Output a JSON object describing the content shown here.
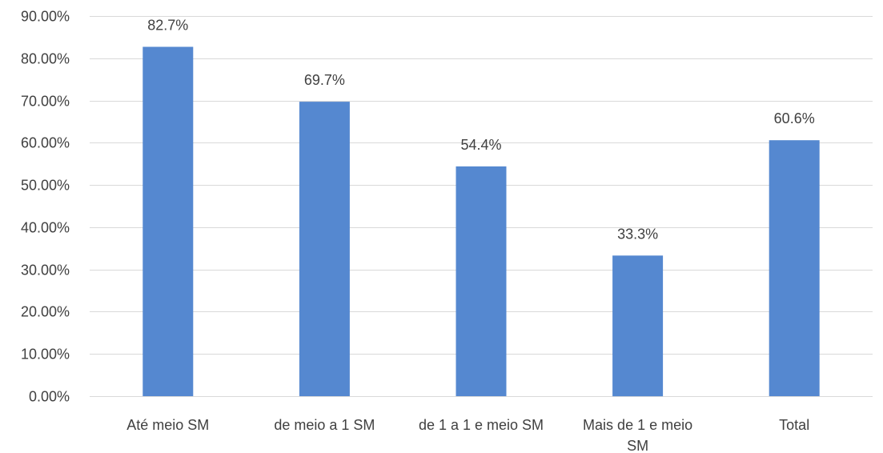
{
  "chart_data": {
    "type": "bar",
    "categories": [
      [
        "Até meio  SM"
      ],
      [
        "de meio a 1 SM"
      ],
      [
        "de 1 a 1 e meio SM"
      ],
      [
        "Mais de 1 e meio",
        "SM"
      ],
      [
        "Total"
      ]
    ],
    "values": [
      82.7,
      69.7,
      54.4,
      33.3,
      60.6
    ],
    "data_labels": [
      "82.7%",
      "69.7%",
      "54.4%",
      "33.3%",
      "60.6%"
    ],
    "y_ticks": [
      0,
      10,
      20,
      30,
      40,
      50,
      60,
      70,
      80,
      90
    ],
    "y_tick_labels": [
      "0.00%",
      "10.00%",
      "20.00%",
      "30.00%",
      "40.00%",
      "50.00%",
      "60.00%",
      "70.00%",
      "80.00%",
      "90.00%"
    ],
    "ylim": [
      0,
      90
    ],
    "grid": true,
    "legend": "none",
    "title": "",
    "xlabel": "",
    "ylabel": "",
    "bar_color": "#5588D0",
    "grid_color": "#D9D9D9",
    "text_color": "#404040"
  }
}
